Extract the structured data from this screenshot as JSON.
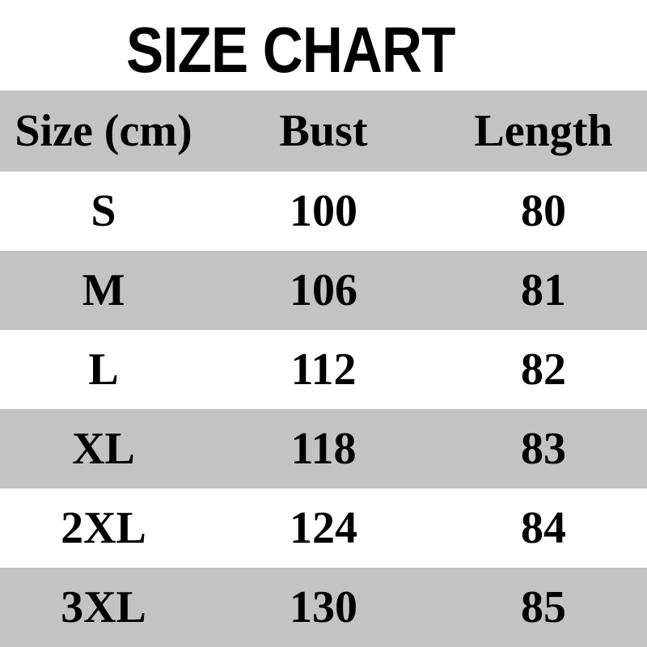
{
  "title": "SIZE CHART",
  "chart_data": {
    "type": "table",
    "title": "SIZE CHART",
    "columns": [
      "Size (cm)",
      "Bust",
      "Length"
    ],
    "rows": [
      [
        "S",
        100,
        80
      ],
      [
        "M",
        106,
        81
      ],
      [
        "L",
        112,
        82
      ],
      [
        "XL",
        118,
        83
      ],
      [
        "2XL",
        124,
        84
      ],
      [
        "3XL",
        130,
        85
      ]
    ],
    "layout": {
      "header_background": "#c3c3c3",
      "alternating_row_background": "#c3c3c3",
      "plain_row_background": "#ffffff",
      "text_color": "#000000",
      "title_color": "#000000"
    }
  }
}
